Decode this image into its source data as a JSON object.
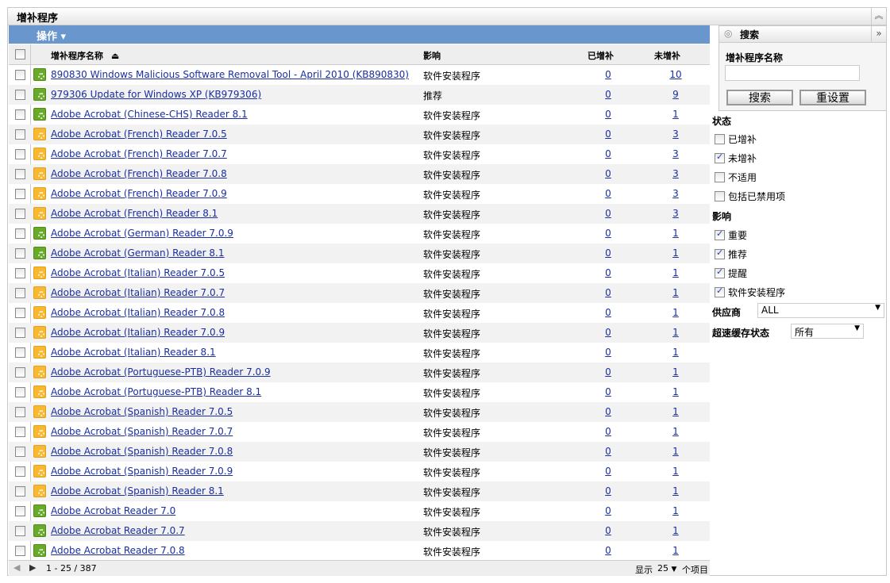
{
  "title": "增补程序",
  "toolbar": {
    "actions_label": "操作 ▾"
  },
  "columns": {
    "name": "增补程序名称",
    "impact": "影响",
    "patched": "已增补",
    "unpatched": "未增补",
    "sort_icon": "sort-ascending"
  },
  "rows": [
    {
      "name": "890830 Windows Malicious Software Removal Tool - April 2010 (KB890830)",
      "impact": "软件安装程序",
      "patched": "0",
      "unpatched": "10",
      "icon": "green"
    },
    {
      "name": "979306 Update for Windows XP (KB979306)",
      "impact": "推荐",
      "patched": "0",
      "unpatched": "9",
      "icon": "green"
    },
    {
      "name": "Adobe Acrobat (Chinese-CHS) Reader 8.1",
      "impact": "软件安装程序",
      "patched": "0",
      "unpatched": "1",
      "icon": "green"
    },
    {
      "name": "Adobe Acrobat (French) Reader 7.0.5",
      "impact": "软件安装程序",
      "patched": "0",
      "unpatched": "3",
      "icon": "yellow"
    },
    {
      "name": "Adobe Acrobat (French) Reader 7.0.7",
      "impact": "软件安装程序",
      "patched": "0",
      "unpatched": "3",
      "icon": "yellow"
    },
    {
      "name": "Adobe Acrobat (French) Reader 7.0.8",
      "impact": "软件安装程序",
      "patched": "0",
      "unpatched": "3",
      "icon": "yellow"
    },
    {
      "name": "Adobe Acrobat (French) Reader 7.0.9",
      "impact": "软件安装程序",
      "patched": "0",
      "unpatched": "3",
      "icon": "yellow"
    },
    {
      "name": "Adobe Acrobat (French) Reader 8.1",
      "impact": "软件安装程序",
      "patched": "0",
      "unpatched": "3",
      "icon": "yellow"
    },
    {
      "name": "Adobe Acrobat (German) Reader 7.0.9",
      "impact": "软件安装程序",
      "patched": "0",
      "unpatched": "1",
      "icon": "green"
    },
    {
      "name": "Adobe Acrobat (German) Reader 8.1",
      "impact": "软件安装程序",
      "patched": "0",
      "unpatched": "1",
      "icon": "green"
    },
    {
      "name": "Adobe Acrobat (Italian) Reader 7.0.5",
      "impact": "软件安装程序",
      "patched": "0",
      "unpatched": "1",
      "icon": "yellow"
    },
    {
      "name": "Adobe Acrobat (Italian) Reader 7.0.7",
      "impact": "软件安装程序",
      "patched": "0",
      "unpatched": "1",
      "icon": "yellow"
    },
    {
      "name": "Adobe Acrobat (Italian) Reader 7.0.8",
      "impact": "软件安装程序",
      "patched": "0",
      "unpatched": "1",
      "icon": "yellow"
    },
    {
      "name": "Adobe Acrobat (Italian) Reader 7.0.9",
      "impact": "软件安装程序",
      "patched": "0",
      "unpatched": "1",
      "icon": "yellow"
    },
    {
      "name": "Adobe Acrobat (Italian) Reader 8.1",
      "impact": "软件安装程序",
      "patched": "0",
      "unpatched": "1",
      "icon": "yellow"
    },
    {
      "name": "Adobe Acrobat (Portuguese-PTB) Reader 7.0.9",
      "impact": "软件安装程序",
      "patched": "0",
      "unpatched": "1",
      "icon": "yellow"
    },
    {
      "name": "Adobe Acrobat (Portuguese-PTB) Reader 8.1",
      "impact": "软件安装程序",
      "patched": "0",
      "unpatched": "1",
      "icon": "yellow"
    },
    {
      "name": "Adobe Acrobat (Spanish) Reader 7.0.5",
      "impact": "软件安装程序",
      "patched": "0",
      "unpatched": "1",
      "icon": "yellow"
    },
    {
      "name": "Adobe Acrobat (Spanish) Reader 7.0.7",
      "impact": "软件安装程序",
      "patched": "0",
      "unpatched": "1",
      "icon": "yellow"
    },
    {
      "name": "Adobe Acrobat (Spanish) Reader 7.0.8",
      "impact": "软件安装程序",
      "patched": "0",
      "unpatched": "1",
      "icon": "yellow"
    },
    {
      "name": "Adobe Acrobat (Spanish) Reader 7.0.9",
      "impact": "软件安装程序",
      "patched": "0",
      "unpatched": "1",
      "icon": "yellow"
    },
    {
      "name": "Adobe Acrobat (Spanish) Reader 8.1",
      "impact": "软件安装程序",
      "patched": "0",
      "unpatched": "1",
      "icon": "yellow"
    },
    {
      "name": "Adobe Acrobat Reader 7.0",
      "impact": "软件安装程序",
      "patched": "0",
      "unpatched": "1",
      "icon": "green"
    },
    {
      "name": "Adobe Acrobat Reader 7.0.7",
      "impact": "软件安装程序",
      "patched": "0",
      "unpatched": "1",
      "icon": "green"
    },
    {
      "name": "Adobe Acrobat Reader 7.0.8",
      "impact": "软件安装程序",
      "patched": "0",
      "unpatched": "1",
      "icon": "green"
    }
  ],
  "footer": {
    "range": "1 - 25 / 387",
    "show_label": "显示",
    "page_size": "25",
    "items_label": "个项目"
  },
  "search": {
    "title": "搜索",
    "field_label": "增补程序名称",
    "value": "",
    "search_button": "搜索",
    "reset_button": "重设置"
  },
  "filters": {
    "status_label": "状态",
    "status": [
      {
        "label": "已增补",
        "checked": false
      },
      {
        "label": "未增补",
        "checked": true
      },
      {
        "label": "不适用",
        "checked": false
      },
      {
        "label": "包括已禁用项",
        "checked": false
      }
    ],
    "impact_label": "影响",
    "impact": [
      {
        "label": "重要",
        "checked": true
      },
      {
        "label": "推荐",
        "checked": true
      },
      {
        "label": "提醒",
        "checked": true
      },
      {
        "label": "软件安装程序",
        "checked": true
      }
    ],
    "vendor_label": "供应商",
    "vendor_value": "ALL",
    "cache_label": "超速缓存状态",
    "cache_value": "所有"
  }
}
